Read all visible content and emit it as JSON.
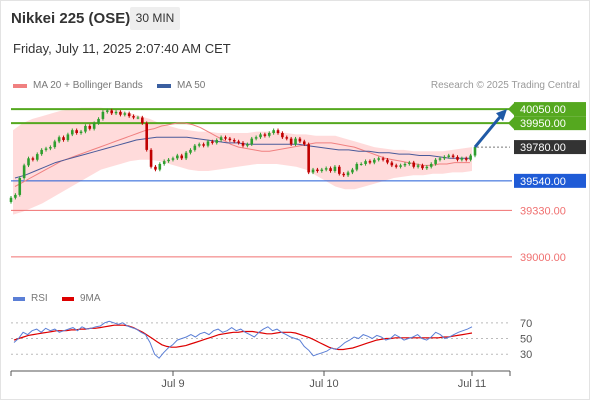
{
  "header": {
    "title": "Nikkei 225 (OSE)",
    "interval": "30 MIN",
    "datetime": "Friday, July 11, 2025 2:07:40 AM CET",
    "research": "Research © 2025 Trading Central"
  },
  "legend": {
    "ma20": "MA 20 + Bollinger Bands",
    "ma50": "MA 50",
    "rsi": "RSI",
    "ma9": "9MA"
  },
  "colors": {
    "bullish": "#2e9e2e",
    "bearish": "#c00000",
    "bands": "#ffd5d5",
    "ma20": "#f08080",
    "ma50": "#4a5a9a",
    "resistance": "#55a81f",
    "pivot": "#1f5bd6",
    "support": "#f07070",
    "rsi": "#5b7fd6",
    "rsi_ma": "#dd0000",
    "arrow": "#1f5aa6",
    "current_price": "#333333"
  },
  "chart_data": [
    {
      "type": "candlestick",
      "x_ticks": [
        "Jul 9",
        "Jul 10",
        "Jul 11"
      ],
      "ylim": [
        38800,
        40150
      ],
      "levels": [
        {
          "value": 40050,
          "label": "40050.00",
          "kind": "resistance"
        },
        {
          "value": 39950,
          "label": "39950.00",
          "kind": "resistance"
        },
        {
          "value": 39780,
          "label": "39780.00",
          "kind": "current"
        },
        {
          "value": 39540,
          "label": "39540.00",
          "kind": "pivot"
        },
        {
          "value": 39330,
          "label": "39330.00",
          "kind": "support"
        },
        {
          "value": 39000,
          "label": "39000.00",
          "kind": "support"
        }
      ],
      "close": [
        39420,
        39440,
        39560,
        39650,
        39700,
        39690,
        39730,
        39760,
        39770,
        39780,
        39820,
        39850,
        39830,
        39870,
        39900,
        39880,
        39890,
        39930,
        39910,
        39950,
        39980,
        40030,
        40040,
        40020,
        40030,
        40010,
        40020,
        40000,
        39990,
        39990,
        39950,
        39760,
        39640,
        39620,
        39660,
        39680,
        39690,
        39700,
        39720,
        39700,
        39740,
        39760,
        39790,
        39800,
        39790,
        39820,
        39810,
        39830,
        39850,
        39840,
        39830,
        39820,
        39810,
        39790,
        39800,
        39840,
        39850,
        39870,
        39860,
        39880,
        39900,
        39880,
        39850,
        39840,
        39800,
        39840,
        39820,
        39800,
        39600,
        39620,
        39610,
        39620,
        39630,
        39610,
        39640,
        39590,
        39580,
        39600,
        39620,
        39660,
        39660,
        39680,
        39670,
        39690,
        39700,
        39690,
        39670,
        39650,
        39640,
        39650,
        39660,
        39670,
        39640,
        39650,
        39630,
        39640,
        39660,
        39690,
        39700,
        39710,
        39720,
        39710,
        39690,
        39700,
        39690,
        39720,
        39780
      ],
      "ma20": [
        39500,
        39530,
        39560,
        39590,
        39620,
        39650,
        39680,
        39700,
        39720,
        39740,
        39760,
        39780,
        39800,
        39820,
        39840,
        39860,
        39880,
        39900,
        39910,
        39930,
        39940,
        39950,
        39950,
        39940,
        39920,
        39890,
        39860,
        39830,
        39800,
        39780,
        39770,
        39760,
        39750,
        39750,
        39760,
        39770,
        39780,
        39790,
        39800,
        39810,
        39810,
        39810,
        39800,
        39790,
        39780,
        39760,
        39740,
        39720,
        39700,
        39690,
        39680,
        39670,
        39660,
        39650,
        39650,
        39660,
        39660,
        39670,
        39670,
        39670
      ],
      "ma50": [
        39560,
        39580,
        39610,
        39640,
        39670,
        39690,
        39710,
        39730,
        39750,
        39770,
        39790,
        39810,
        39830,
        39840,
        39850,
        39850,
        39850,
        39850,
        39840,
        39830,
        39820,
        39810,
        39810,
        39800,
        39800,
        39800,
        39800,
        39800,
        39800,
        39790,
        39780,
        39770,
        39760,
        39760,
        39750,
        39750,
        39740,
        39740,
        39730,
        39730,
        39720,
        39720,
        39710,
        39700,
        39700,
        39700
      ],
      "bb_upper": [
        39900,
        39950,
        39980,
        40000,
        40020,
        40040,
        40050,
        40060,
        40060,
        40060,
        40050,
        40040,
        40020,
        40000,
        39980,
        39950,
        39930,
        39910,
        39900,
        39890,
        39890,
        39880,
        39880,
        39880,
        39880,
        39890,
        39890,
        39890,
        39880,
        39870,
        39870,
        39860,
        39860,
        39860,
        39840,
        39820,
        39800,
        39780,
        39770,
        39760,
        39760,
        39750,
        39750,
        39750,
        39750,
        39760,
        39770,
        39780
      ],
      "bb_lower": [
        39300,
        39320,
        39350,
        39380,
        39420,
        39460,
        39500,
        39540,
        39580,
        39620,
        39640,
        39660,
        39680,
        39690,
        39690,
        39680,
        39660,
        39640,
        39620,
        39610,
        39610,
        39620,
        39630,
        39640,
        39650,
        39660,
        39660,
        39660,
        39650,
        39640,
        39620,
        39580,
        39540,
        39500,
        39480,
        39480,
        39500,
        39520,
        39540,
        39560,
        39570,
        39580,
        39580,
        39590,
        39590,
        39600,
        39600,
        39610
      ]
    },
    {
      "type": "line",
      "series": [
        {
          "name": "RSI"
        },
        {
          "name": "9MA"
        }
      ],
      "ylim": [
        15,
        80
      ],
      "ytick_labels": [
        "70",
        "50",
        "30"
      ],
      "yticks": [
        70,
        50,
        30
      ],
      "rsi": [
        45,
        50,
        58,
        55,
        60,
        62,
        58,
        63,
        60,
        62,
        58,
        60,
        62,
        64,
        60,
        65,
        62,
        63,
        65,
        66,
        70,
        72,
        70,
        68,
        70,
        66,
        64,
        62,
        58,
        55,
        45,
        30,
        25,
        32,
        38,
        42,
        48,
        50,
        52,
        55,
        52,
        56,
        58,
        55,
        60,
        62,
        58,
        60,
        64,
        60,
        62,
        58,
        55,
        52,
        58,
        62,
        65,
        60,
        62,
        58,
        55,
        52,
        50,
        48,
        40,
        35,
        28,
        30,
        32,
        34,
        38,
        36,
        40,
        45,
        48,
        52,
        50,
        55,
        53,
        50,
        54,
        52,
        48,
        50,
        55,
        52,
        48,
        50,
        52,
        55,
        50,
        48,
        52,
        58,
        55,
        50,
        52,
        55,
        58,
        60,
        62,
        65
      ],
      "rsi_ma": [
        48,
        50,
        52,
        54,
        55,
        56,
        57,
        58,
        59,
        60,
        60,
        60,
        61,
        61,
        62,
        62,
        63,
        63,
        64,
        65,
        66,
        67,
        67,
        67,
        66,
        64,
        61,
        58,
        54,
        50,
        46,
        42,
        40,
        39,
        39,
        40,
        41,
        43,
        45,
        47,
        49,
        51,
        53,
        55,
        56,
        57,
        58,
        58,
        59,
        59,
        59,
        58,
        57,
        56,
        56,
        57,
        58,
        58,
        58,
        57,
        55,
        53,
        51,
        48,
        45,
        42,
        39,
        37,
        36,
        36,
        37,
        38,
        40,
        42,
        44,
        46,
        48,
        49,
        50,
        50,
        51,
        51,
        51,
        51,
        51,
        51,
        51,
        51,
        51,
        51,
        52,
        52,
        53,
        54,
        55,
        56,
        57
      ]
    }
  ]
}
